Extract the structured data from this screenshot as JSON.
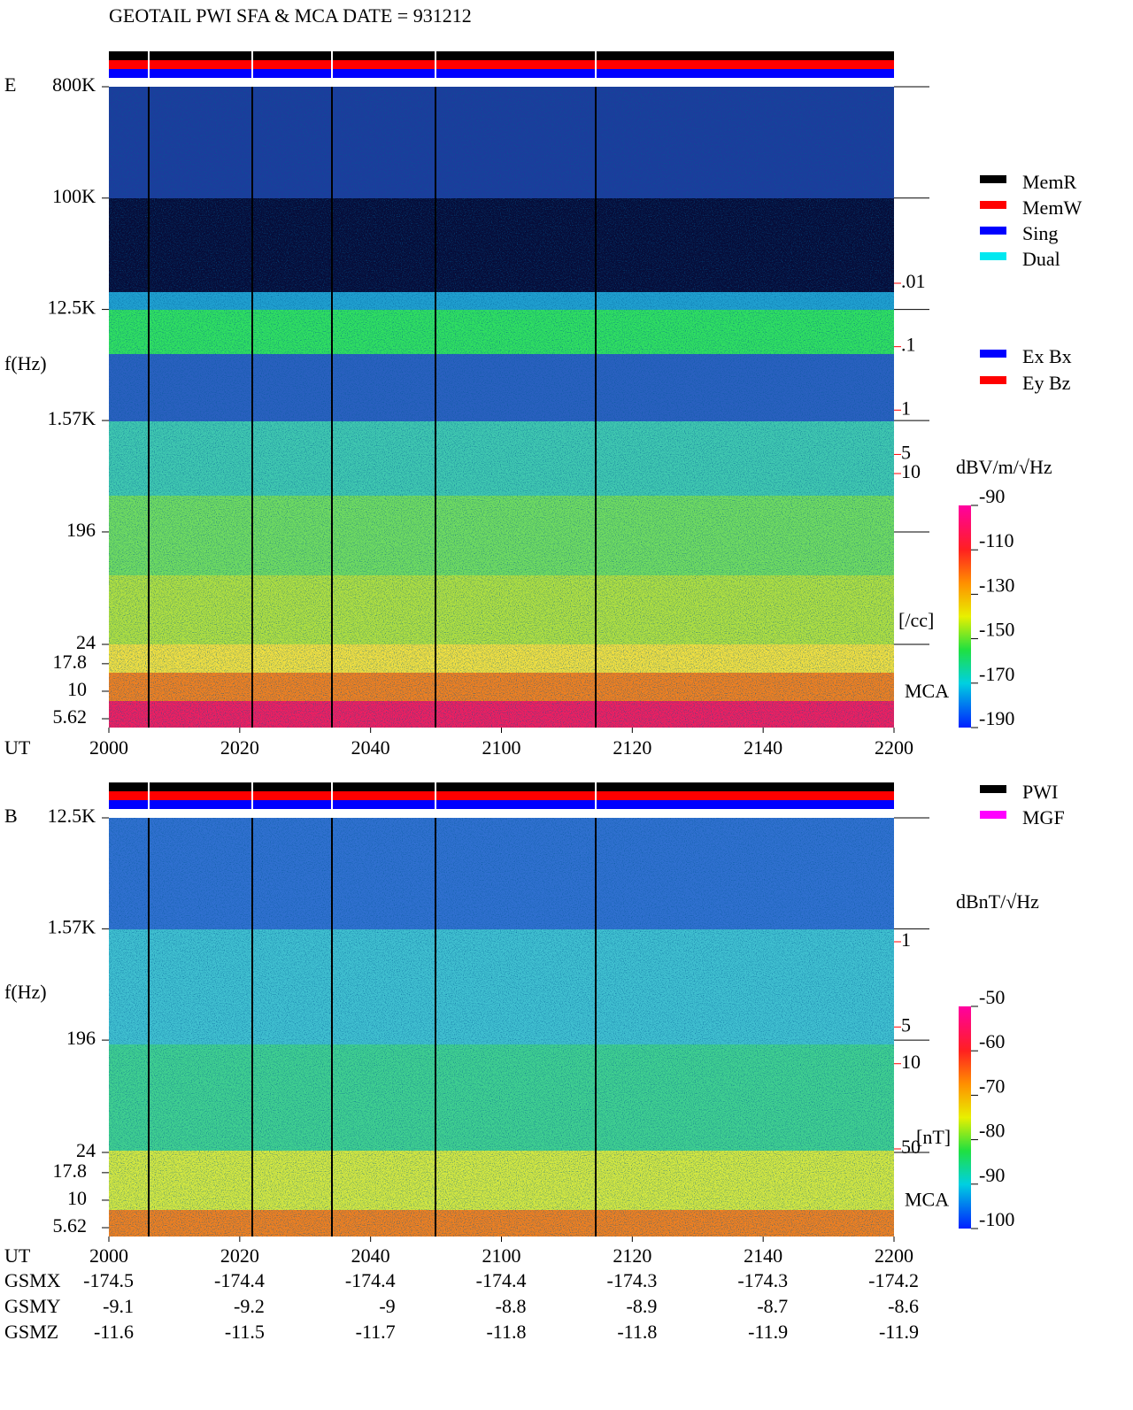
{
  "title": "GEOTAIL   PWI SFA & MCA   DATE = 931212",
  "chart_data": [
    {
      "type": "spectrogram",
      "panel": "E",
      "y_label": "f(Hz)",
      "x_label": "UT",
      "categories": [
        "2000",
        "2020",
        "2040",
        "2100",
        "2120",
        "2140",
        "2200"
      ],
      "yscale": "log",
      "ylim": [
        24,
        800000
      ],
      "yticks": [
        {
          "value": 800000,
          "label": "800K"
        },
        {
          "value": 100000,
          "label": "100K"
        },
        {
          "value": 12500,
          "label": "12.5K"
        },
        {
          "value": 1570,
          "label": "1.57K"
        },
        196,
        24
      ],
      "mca_label": "MCA",
      "mca_ylim": [
        4.67,
        26.7
      ],
      "mca_yticks": [
        17.8,
        10,
        5.62
      ],
      "y2_label": "[/cc]",
      "y2lim": [
        0.01,
        10
      ],
      "y2ticks": [
        10,
        5,
        1,
        {
          "value": 0.1,
          "label": ".1"
        },
        {
          "value": 0.01,
          "label": ".01"
        }
      ],
      "y2_color": "#ff0000",
      "colorbar_label": "dBV/m/√Hz",
      "colorbar_lim": [
        -190,
        -90
      ],
      "colorbar_ticks": [
        -90,
        -110,
        -130,
        -150,
        -170,
        -190
      ],
      "legend": [
        {
          "name": "MemR",
          "color": "#000000"
        },
        {
          "name": "MemW",
          "color": "#ff0000"
        },
        {
          "name": "Sing",
          "color": "#0000ff"
        },
        {
          "name": "Dual",
          "color": "#00e8f0"
        }
      ],
      "legend2": [
        {
          "name": "Ex Bx",
          "color": "#0000ff"
        },
        {
          "name": "Ey Bz",
          "color": "#ff0000"
        }
      ]
    },
    {
      "type": "spectrogram",
      "panel": "B",
      "y_label": "f(Hz)",
      "x_label": "UT",
      "categories": [
        "2000",
        "2020",
        "2040",
        "2100",
        "2120",
        "2140",
        "2200"
      ],
      "yscale": "log",
      "ylim": [
        24,
        12500
      ],
      "yticks": [
        {
          "value": 12500,
          "label": "12.5K"
        },
        {
          "value": 1570,
          "label": "1.57K"
        },
        196,
        24
      ],
      "mca_label": "MCA",
      "mca_ylim": [
        4.67,
        27.2
      ],
      "mca_yticks": [
        17.8,
        10,
        5.62
      ],
      "y2_label": "[nT]",
      "y2lim": [
        1,
        50
      ],
      "y2ticks": [
        50,
        10,
        5,
        1
      ],
      "y2_color": "#ff0000",
      "colorbar_label": "dBnT/√Hz",
      "colorbar_lim": [
        -100,
        -50
      ],
      "colorbar_ticks": [
        -50,
        -60,
        -70,
        -80,
        -90,
        -100
      ],
      "legend": [
        {
          "name": "PWI",
          "color": "#000000"
        },
        {
          "name": "MGF",
          "color": "#ff00ff"
        }
      ],
      "legend2": []
    }
  ],
  "position": {
    "rows": [
      {
        "name": "GSMX",
        "values": [
          -174.5,
          -174.4,
          -174.4,
          -174.4,
          -174.3,
          -174.3,
          -174.2
        ]
      },
      {
        "name": "GSMY",
        "values": [
          -9.1,
          -9.2,
          -9.0,
          -8.8,
          -8.9,
          -8.7,
          -8.6
        ]
      },
      {
        "name": "GSMZ",
        "values": [
          -11.6,
          -11.5,
          -11.7,
          -11.8,
          -11.8,
          -11.9,
          -11.9
        ]
      }
    ]
  }
}
